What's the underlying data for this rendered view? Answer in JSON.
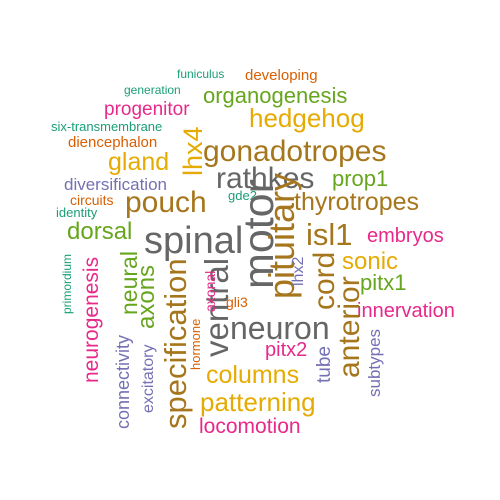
{
  "palette": {
    "teal": "#1B9E77",
    "orange": "#D95F02",
    "purple": "#7570B3",
    "magenta": "#E7298A",
    "green": "#66A61E",
    "gold": "#E6AB02",
    "brown": "#A6761D",
    "gray": "#666666"
  },
  "words": {
    "funiculus": "funiculus",
    "developing": "developing",
    "generation": "generation",
    "organogenesis": "organogenesis",
    "progenitor": "progenitor",
    "hedgehog": "hedgehog",
    "six_transmembrane": "six-transmembrane",
    "lhx4": "lhx4",
    "diencephalon": "diencephalon",
    "gonadotropes": "gonadotropes",
    "gland": "gland",
    "rathkes": "rathkes",
    "prop1": "prop1",
    "diversification": "diversification",
    "circuits": "circuits",
    "gde2": "gde2",
    "pouch": "pouch",
    "thyrotropes": "thyrotropes",
    "identity": "identity",
    "dorsal": "dorsal",
    "isl1": "isl1",
    "spinal": "spinal",
    "embryos": "embryos",
    "motor": "motor",
    "pituitary": "pituitary",
    "sonic": "sonic",
    "lhx2": "lhx2",
    "cord": "cord",
    "pitx1": "pitx1",
    "neural": "neural",
    "primordium": "primordium",
    "neurogenesis": "neurogenesis",
    "axons": "axons",
    "ventral": "ventral",
    "axonal": "axonal",
    "gli3": "gli3",
    "anterior": "anterior",
    "innervation": "innervation",
    "neuron": "neuron",
    "hormone": "hormone",
    "specification": "specification",
    "connectivity": "connectivity",
    "pitx2": "pitx2",
    "excitatory": "excitatory",
    "subtypes": "subtypes",
    "tube": "tube",
    "columns": "columns",
    "patterning": "patterning",
    "locomotion": "locomotion"
  }
}
